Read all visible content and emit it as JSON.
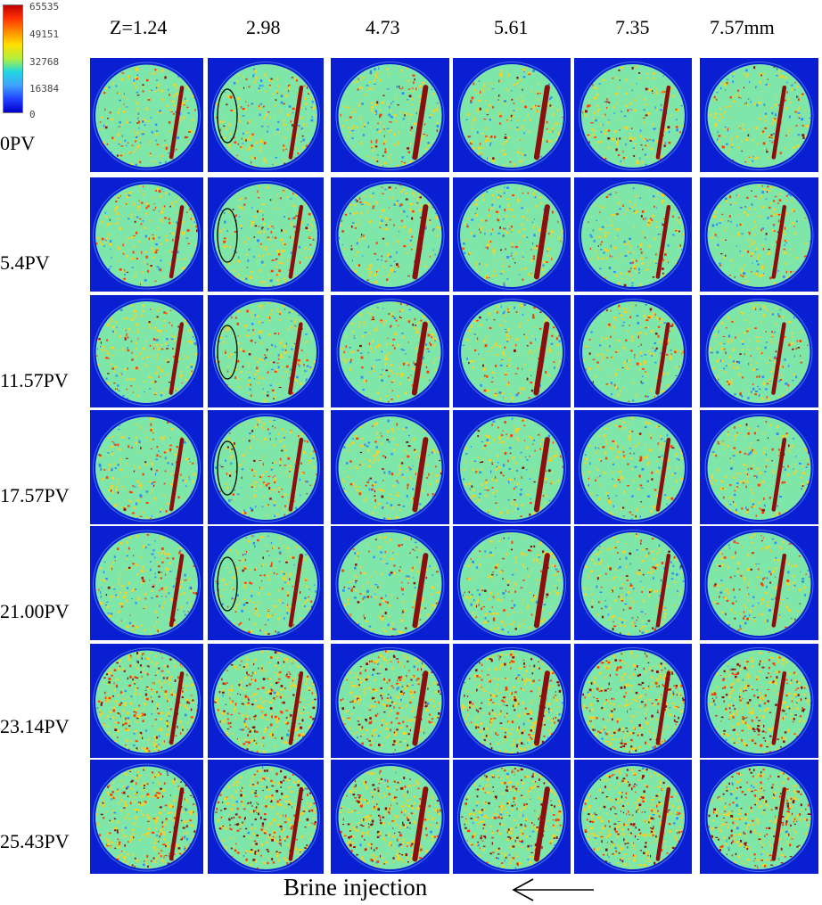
{
  "colorbar": {
    "ticks": [
      "65535",
      "49151",
      "32768",
      "16384",
      "0"
    ]
  },
  "columns": [
    "Z=1.24",
    "2.98",
    "4.73",
    "5.61",
    "7.35",
    "7.57mm"
  ],
  "rows": [
    "0PV",
    "5.4PV",
    "11.57PV",
    "17.57PV",
    "21.00PV",
    "23.14PV",
    "25.43PV"
  ],
  "colors": {
    "background_tile": "#0a1ed2",
    "disc_base": "#7ee6a8",
    "fracture": "#8b0f0f",
    "speckle_hot": "#ff3a00",
    "speckle_warm": "#ffd21a",
    "speckle_cool": "#2f8cff"
  },
  "footer": {
    "label": "Brine injection",
    "arrow_direction": "left"
  }
}
